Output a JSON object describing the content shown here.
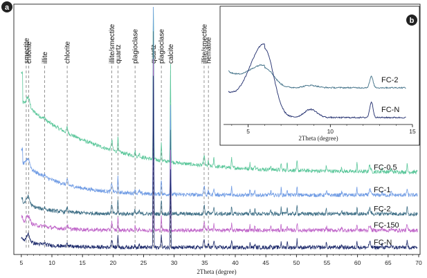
{
  "chart_data": [
    {
      "panel": "a",
      "type": "line",
      "xlabel": "2Theta (degree)",
      "xlim": [
        4,
        70
      ],
      "xticks": [
        5,
        10,
        15,
        20,
        25,
        30,
        35,
        40,
        45,
        50,
        55,
        60,
        65,
        70
      ],
      "yticks_shown": false,
      "mineral_markers": [
        {
          "label": "smectite",
          "x": 5.8
        },
        {
          "label": "chlorite",
          "x": 6.2
        },
        {
          "label": "illite",
          "x": 8.8
        },
        {
          "label": "chlorite",
          "x": 12.5
        },
        {
          "label": "illite/smectite",
          "x": 19.8
        },
        {
          "label": "quartz",
          "x": 20.8
        },
        {
          "label": "plagioclase",
          "x": 23.6
        },
        {
          "label": "quartz",
          "x": 26.6
        },
        {
          "label": "plagioclase",
          "x": 27.9
        },
        {
          "label": "calcite",
          "x": 29.4
        },
        {
          "label": "illite/smectite",
          "x": 34.9
        },
        {
          "label": "hematite",
          "x": 35.6
        }
      ],
      "series": [
        {
          "name": "FC-0.5",
          "color": "#5cc79b",
          "baseline": 33.3,
          "low_angle": 30,
          "low_decay": 3.2,
          "scale": 1.0
        },
        {
          "name": "FC-1",
          "color": "#6f9be4",
          "baseline": 23.8,
          "low_angle": 14,
          "low_decay": 1.6,
          "scale": 0.9
        },
        {
          "name": "FC-2",
          "color": "#3f6f86",
          "baseline": 15.9,
          "low_angle": 5,
          "low_decay": 1.0,
          "scale": 0.85
        },
        {
          "name": "FC-150",
          "color": "#c066c9",
          "baseline": 9.0,
          "low_angle": 4,
          "low_decay": 1.0,
          "scale": 0.8
        },
        {
          "name": "FC-N",
          "color": "#1d2a6b",
          "baseline": 1.8,
          "low_angle": 3,
          "low_decay": 1.0,
          "scale": 0.8
        }
      ],
      "peaks": [
        {
          "x": 6.1,
          "h": 4,
          "w": 0.4
        },
        {
          "x": 8.8,
          "h": 1.0,
          "w": 0.15
        },
        {
          "x": 12.5,
          "h": 2.2,
          "w": 0.15
        },
        {
          "x": 19.8,
          "h": 4,
          "w": 0.15
        },
        {
          "x": 20.8,
          "h": 7,
          "w": 0.08
        },
        {
          "x": 23.6,
          "h": 2,
          "w": 0.1
        },
        {
          "x": 24.3,
          "h": 1.5,
          "w": 0.1
        },
        {
          "x": 26.6,
          "h": 90,
          "w": 0.07
        },
        {
          "x": 27.9,
          "h": 7,
          "w": 0.09
        },
        {
          "x": 29.4,
          "h": 42,
          "w": 0.07
        },
        {
          "x": 34.9,
          "h": 4,
          "w": 0.15
        },
        {
          "x": 35.6,
          "h": 2,
          "w": 0.1
        },
        {
          "x": 36.5,
          "h": 3.5,
          "w": 0.1
        },
        {
          "x": 39.4,
          "h": 4,
          "w": 0.08
        },
        {
          "x": 42.4,
          "h": 2.5,
          "w": 0.08
        },
        {
          "x": 43.2,
          "h": 2,
          "w": 0.08
        },
        {
          "x": 45.8,
          "h": 2,
          "w": 0.08
        },
        {
          "x": 47.5,
          "h": 3,
          "w": 0.08
        },
        {
          "x": 48.5,
          "h": 3,
          "w": 0.08
        },
        {
          "x": 50.1,
          "h": 4,
          "w": 0.08
        },
        {
          "x": 54.9,
          "h": 2,
          "w": 0.1
        },
        {
          "x": 57.4,
          "h": 1.5,
          "w": 0.1
        },
        {
          "x": 59.9,
          "h": 3.5,
          "w": 0.08
        },
        {
          "x": 62.0,
          "h": 2.5,
          "w": 0.2
        },
        {
          "x": 64.0,
          "h": 1.5,
          "w": 0.1
        },
        {
          "x": 65.5,
          "h": 1.5,
          "w": 0.1
        },
        {
          "x": 68.1,
          "h": 3,
          "w": 0.1
        }
      ],
      "ylim": [
        0,
        100
      ]
    },
    {
      "panel": "b",
      "type": "line",
      "xlabel": "2Theta (degree)",
      "xlim": [
        3.5,
        15
      ],
      "xticks": [
        5,
        10,
        15
      ],
      "yticks_shown": false,
      "series": [
        {
          "name": "FC-2",
          "color": "#3f6f86",
          "baseline": 32,
          "peak6": 18,
          "peak12": 10
        },
        {
          "name": "FC-N",
          "color": "#1d2a6b",
          "baseline": 5,
          "peak6": 62,
          "peak12": 14
        }
      ],
      "ylim": [
        0,
        100
      ]
    }
  ],
  "panel_labels": [
    "a",
    "b"
  ]
}
